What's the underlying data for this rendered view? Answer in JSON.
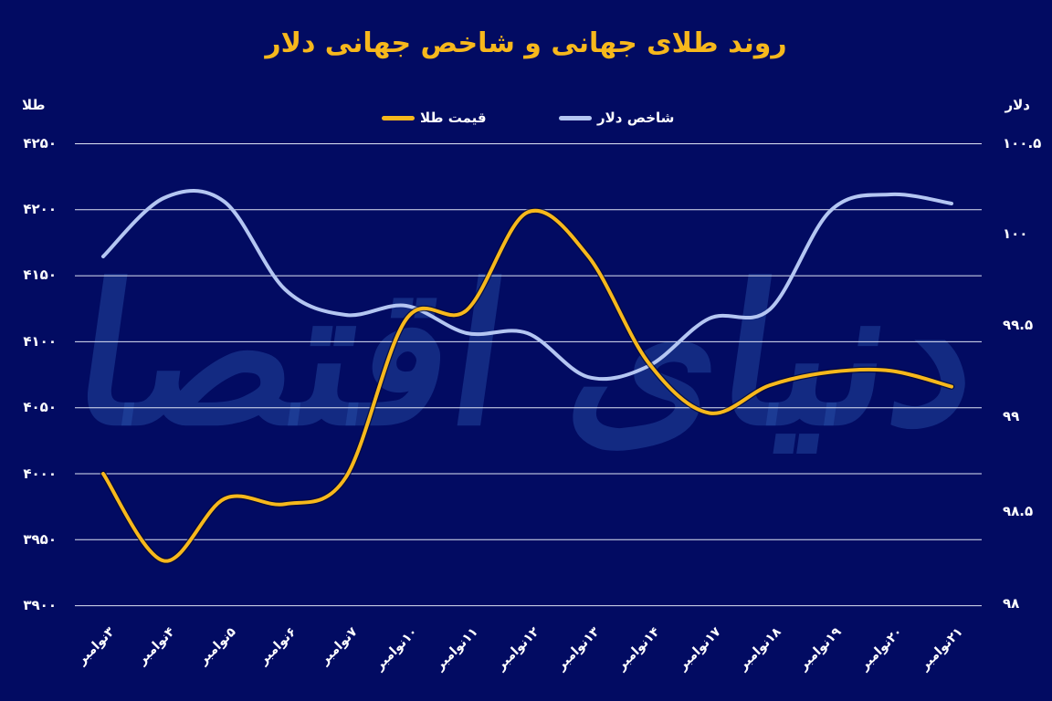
{
  "title": "روند طلای جهانی و شاخص جهانی دلار",
  "watermark": "دنیای اقتصاد",
  "colors": {
    "background": "#020b62",
    "title": "#f7b81c",
    "gold_line": "#f7b81c",
    "dollar_line": "#b4c6f2",
    "gridline": "#dfe4f5",
    "text": "#ffffff"
  },
  "axes": {
    "left_title": "طلا",
    "right_title": "دلار",
    "left_ticks": [
      "۴۲۵۰",
      "۴۲۰۰",
      "۴۱۵۰",
      "۴۱۰۰",
      "۴۰۵۰",
      "۴۰۰۰",
      "۳۹۵۰",
      "۳۹۰۰"
    ],
    "right_ticks": [
      "۱۰۰.۵",
      "۱۰۰",
      "۹۹.۵",
      "۹۹",
      "۹۸.۵",
      "۹۸"
    ]
  },
  "legend": {
    "gold_label": "قیمت طلا",
    "dollar_label": "شاخص دلار"
  },
  "x_labels": [
    "۳نوامبر",
    "۴نوامبر",
    "۵نوامبر",
    "۶نوامبر",
    "۷نوامبر",
    "۱۰نوامبر",
    "۱۱نوامبر",
    "۱۲نوامبر",
    "۱۳نوامبر",
    "۱۴نوامبر",
    "۱۷نوامبر",
    "۱۸نوامبر",
    "۱۹نوامبر",
    "۲۰نوامبر",
    "۲۱نوامبر"
  ],
  "chart_data": {
    "type": "line",
    "title": "روند طلای جهانی و شاخص جهانی دلار",
    "categories": [
      "3 Nov",
      "4 Nov",
      "5 Nov",
      "6 Nov",
      "7 Nov",
      "10 Nov",
      "11 Nov",
      "12 Nov",
      "13 Nov",
      "14 Nov",
      "17 Nov",
      "18 Nov",
      "19 Nov",
      "20 Nov",
      "21 Nov"
    ],
    "series": [
      {
        "name": "قیمت طلا",
        "axis": "left",
        "color": "#f7b81c",
        "values": [
          4000,
          3934,
          3981,
          3977,
          3997,
          4117,
          4124,
          4198,
          4165,
          4084,
          4046,
          4067,
          4077,
          4078,
          4066
        ]
      },
      {
        "name": "شاخص دلار",
        "axis": "right",
        "color": "#b4c6f2",
        "values": [
          99.87,
          100.19,
          100.17,
          99.69,
          99.55,
          99.6,
          99.45,
          99.45,
          99.21,
          99.27,
          99.53,
          99.58,
          100.12,
          100.21,
          100.16
        ]
      }
    ],
    "xlabel": "",
    "ylabel_left": "طلا",
    "ylabel_right": "دلار",
    "ylim_left": [
      3900,
      4250
    ],
    "ylim_right": [
      98,
      100.5
    ],
    "yticks_left": [
      4250,
      4200,
      4150,
      4100,
      4050,
      4000,
      3950,
      3900
    ],
    "yticks_right": [
      100.5,
      100,
      99.5,
      99,
      98.5,
      98
    ],
    "grid": true,
    "legend_position": "top"
  }
}
